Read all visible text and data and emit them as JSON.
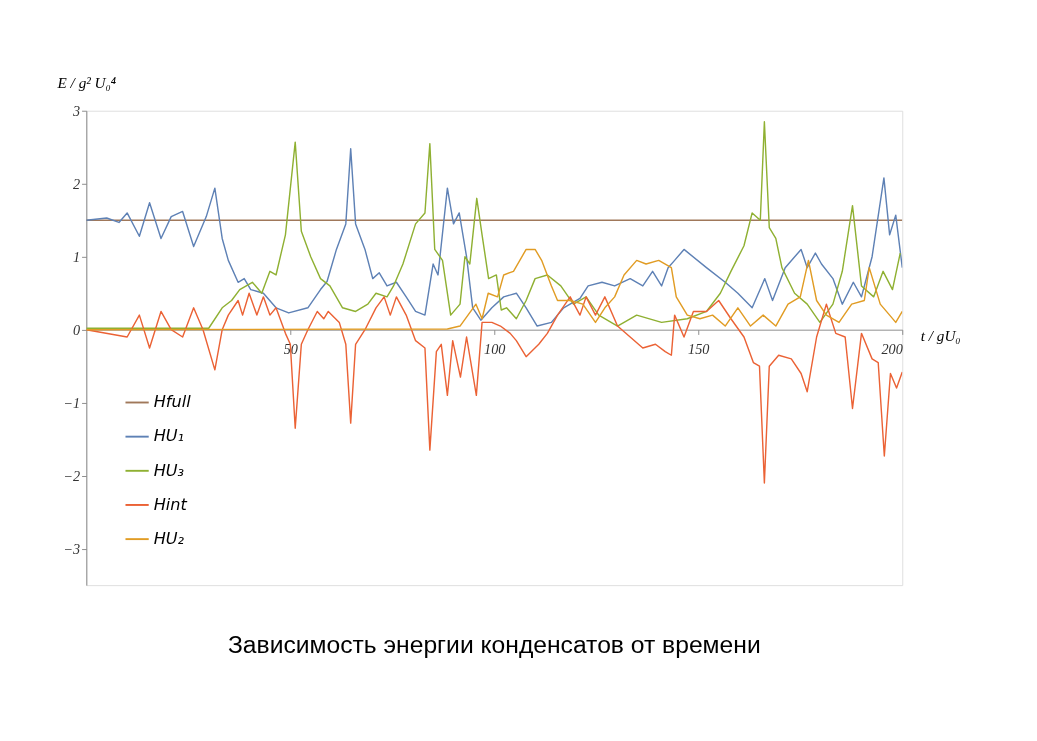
{
  "chart_data": {
    "type": "line",
    "title": "Зависимость энергии конденсатов от времени",
    "xlabel": "t / gU₀",
    "ylabel": "E / g² U₀⁴",
    "xlim": [
      0,
      200
    ],
    "ylim": [
      -3.5,
      3
    ],
    "xticks": [
      50,
      100,
      150,
      200
    ],
    "yticks": [
      -3,
      -2,
      -1,
      0,
      1,
      2,
      3
    ],
    "grid": false,
    "legend": "bottom left",
    "marker": "none",
    "line_style": "solid",
    "series": [
      {
        "name": "Hfull",
        "color": "#a0785a",
        "x": [
          0,
          200
        ],
        "values": [
          1.5,
          1.5
        ]
      },
      {
        "name": "HU₁",
        "color": "#5e81b5",
        "x": [
          0,
          5,
          8,
          10,
          13,
          15.5,
          18.3,
          20.8,
          23.6,
          26.3,
          29.4,
          31.5,
          33.3,
          34.8,
          37.2,
          38.7,
          40.3,
          43.4,
          46.5,
          49.6,
          54.3,
          57.4,
          59,
          61.3,
          63.6,
          64.8,
          66,
          68.3,
          70.2,
          71.8,
          73.7,
          76,
          78.4,
          80.7,
          83,
          85,
          86.2,
          88.5,
          90,
          91.4,
          93.2,
          94.7,
          96.7,
          99.4,
          102.3,
          105.4,
          107.8,
          110.5,
          114,
          117,
          121,
          123,
          126.4,
          129.5,
          133.3,
          136.4,
          138.8,
          141,
          142.6,
          144.2,
          146.5,
          152,
          156.6,
          159.7,
          163.2,
          166.3,
          168.2,
          171.3,
          175.2,
          176.7,
          178.7,
          180.2,
          183,
          185.3,
          188,
          190,
          192.6,
          195.5,
          196.9,
          198.4,
          200
        ],
        "values": [
          1.5,
          1.53,
          1.47,
          1.6,
          1.28,
          1.74,
          1.25,
          1.55,
          1.62,
          1.14,
          1.55,
          1.94,
          1.25,
          0.95,
          0.65,
          0.7,
          0.55,
          0.5,
          0.3,
          0.23,
          0.3,
          0.55,
          0.66,
          1.1,
          1.45,
          2.48,
          1.45,
          1.1,
          0.7,
          0.78,
          0.6,
          0.65,
          0.45,
          0.25,
          0.2,
          0.9,
          0.75,
          1.94,
          1.45,
          1.6,
          1.0,
          0.3,
          0.13,
          0.3,
          0.45,
          0.5,
          0.3,
          0.05,
          0.1,
          0.3,
          0.43,
          0.6,
          0.65,
          0.6,
          0.7,
          0.6,
          0.8,
          0.6,
          0.85,
          0.95,
          1.1,
          0.85,
          0.65,
          0.5,
          0.3,
          0.7,
          0.4,
          0.85,
          1.1,
          0.85,
          1.05,
          0.9,
          0.7,
          0.35,
          0.65,
          0.45,
          1.0,
          2.08,
          1.3,
          1.57,
          0.85
        ]
      },
      {
        "name": "HU₃",
        "color": "#8fb032",
        "x": [
          0,
          20,
          30,
          33.3,
          35.6,
          37.6,
          40.7,
          43,
          45,
          46.5,
          48.8,
          51.2,
          52.7,
          55,
          57.4,
          59.7,
          62.8,
          66,
          69,
          71,
          73.7,
          75.3,
          77.6,
          80.7,
          83,
          84.2,
          85.4,
          87.3,
          89.3,
          91.6,
          92.8,
          94,
          95.7,
          97,
          98.6,
          100.5,
          101.7,
          103,
          105.4,
          107.8,
          110,
          113,
          116.3,
          119.4,
          122.5,
          125.6,
          130.2,
          134.9,
          141,
          147.3,
          152,
          155.4,
          158,
          161.2,
          163.2,
          165.2,
          166.2,
          167.4,
          169,
          170.5,
          173.6,
          176.7,
          179.8,
          183,
          185.3,
          187.8,
          190,
          193,
          195.3,
          197.6,
          199.5
        ],
        "values": [
          0.02,
          0.02,
          0.02,
          0.3,
          0.4,
          0.55,
          0.65,
          0.5,
          0.8,
          0.75,
          1.3,
          2.57,
          1.35,
          1.0,
          0.7,
          0.6,
          0.3,
          0.25,
          0.35,
          0.5,
          0.45,
          0.6,
          0.9,
          1.45,
          1.6,
          2.55,
          1.1,
          0.95,
          0.2,
          0.35,
          1.0,
          0.9,
          1.8,
          1.3,
          0.7,
          0.75,
          0.27,
          0.3,
          0.15,
          0.4,
          0.7,
          0.75,
          0.6,
          0.35,
          0.45,
          0.2,
          0.05,
          0.2,
          0.1,
          0.15,
          0.25,
          0.5,
          0.8,
          1.15,
          1.6,
          1.5,
          2.85,
          1.4,
          1.25,
          0.85,
          0.5,
          0.35,
          0.1,
          0.35,
          0.8,
          1.7,
          0.6,
          0.45,
          0.8,
          0.55,
          1.05
        ]
      },
      {
        "name": "Hint",
        "color": "#eb6235",
        "x": [
          0,
          10,
          13,
          15.5,
          18.3,
          20.8,
          23.6,
          26.3,
          28.6,
          31.5,
          33.3,
          34.8,
          37.2,
          38.3,
          39.9,
          41.8,
          43.4,
          45,
          46.5,
          48.8,
          50,
          51.2,
          52.7,
          54.3,
          56.6,
          58.2,
          59.3,
          62,
          63.6,
          64.8,
          66,
          68.3,
          71,
          73,
          74.5,
          76,
          78.4,
          80.7,
          83,
          84.2,
          85.8,
          87,
          88.5,
          89.8,
          91.7,
          93.2,
          95.6,
          97,
          99.4,
          101.5,
          103.9,
          105.4,
          107.8,
          110.9,
          113,
          115.5,
          118.6,
          121,
          122.5,
          124.8,
          127.1,
          130.2,
          133.3,
          136.4,
          139.5,
          141.9,
          143.4,
          144.2,
          146.5,
          148.8,
          152,
          155,
          158,
          161.2,
          163.5,
          165,
          166.2,
          167.4,
          169.7,
          172.8,
          175.2,
          176.7,
          179,
          181.4,
          183.7,
          186,
          187.8,
          190,
          192.6,
          194.1,
          195.6,
          197.1,
          198.6,
          200
        ],
        "values": [
          0,
          -0.1,
          0.2,
          -0.25,
          0.25,
          0,
          -0.1,
          0.3,
          0,
          -0.55,
          0,
          0.2,
          0.4,
          0.2,
          0.5,
          0.2,
          0.45,
          0.2,
          0.3,
          -0.05,
          -0.2,
          -1.35,
          -0.2,
          0,
          0.25,
          0.15,
          0.25,
          0.1,
          -0.2,
          -1.28,
          -0.2,
          0,
          0.3,
          0.45,
          0.2,
          0.45,
          0.2,
          -0.15,
          -0.25,
          -1.65,
          -0.3,
          -0.2,
          -0.9,
          -0.15,
          -0.65,
          -0.1,
          -0.9,
          0.1,
          0.1,
          0.05,
          -0.05,
          -0.15,
          -0.37,
          -0.2,
          -0.05,
          0.2,
          0.45,
          0.2,
          0.45,
          0.2,
          0.45,
          0.05,
          -0.1,
          -0.25,
          -0.2,
          -0.3,
          -0.35,
          0.2,
          -0.1,
          0.25,
          0.25,
          0.4,
          0.15,
          -0.1,
          -0.45,
          -0.5,
          -2.1,
          -0.5,
          -0.35,
          -0.4,
          -0.6,
          -0.85,
          -0.1,
          0.35,
          -0.05,
          -0.1,
          -1.08,
          -0.05,
          -0.4,
          -0.45,
          -1.73,
          -0.6,
          -0.8,
          -0.58
        ]
      },
      {
        "name": "HU₂",
        "color": "#e19c24",
        "x": [
          0,
          88.5,
          91.6,
          95.5,
          97,
          98.5,
          100.8,
          102.3,
          104.7,
          107.8,
          110,
          111.6,
          114,
          115.5,
          118.6,
          121.7,
          124.8,
          127.1,
          129.5,
          131.8,
          134.9,
          137.2,
          140.3,
          143.4,
          144.6,
          147.3,
          150.4,
          153.5,
          156.6,
          159.7,
          162.8,
          165.9,
          169,
          172,
          175,
          177,
          179,
          181.4,
          184.5,
          187.6,
          190.7,
          191.9,
          194.6,
          196.9,
          198.4,
          200
        ],
        "values": [
          0,
          0.01,
          0.05,
          0.35,
          0.15,
          0.5,
          0.45,
          0.75,
          0.8,
          1.1,
          1.1,
          0.95,
          0.6,
          0.4,
          0.4,
          0.35,
          0.1,
          0.3,
          0.45,
          0.75,
          0.95,
          0.9,
          0.95,
          0.85,
          0.45,
          0.2,
          0.15,
          0.2,
          0.05,
          0.3,
          0.05,
          0.2,
          0.05,
          0.35,
          0.45,
          0.95,
          0.4,
          0.2,
          0.1,
          0.35,
          0.4,
          0.85,
          0.35,
          0.2,
          0.1,
          0.25
        ]
      }
    ]
  }
}
